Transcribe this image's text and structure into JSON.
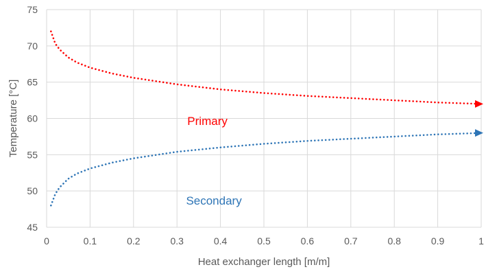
{
  "chart_data": {
    "type": "line",
    "title": "",
    "xlabel": "Heat exchanger length [m/m]",
    "ylabel": "Temperature [°C]",
    "xlim": [
      0,
      1
    ],
    "ylim": [
      45,
      75
    ],
    "xticks": [
      "0",
      "0.1",
      "0.2",
      "0.3",
      "0.4",
      "0.5",
      "0.6",
      "0.7",
      "0.8",
      "0.9",
      "1"
    ],
    "yticks": [
      "45",
      "50",
      "55",
      "60",
      "65",
      "70",
      "75"
    ],
    "grid": true,
    "series": [
      {
        "name": "Primary",
        "color": "#ff0000",
        "style": "dotted",
        "end_marker": "arrow",
        "x": [
          0.01,
          0.02,
          0.03,
          0.05,
          0.07,
          0.1,
          0.15,
          0.2,
          0.3,
          0.4,
          0.5,
          0.6,
          0.7,
          0.8,
          0.9,
          1.0
        ],
        "y": [
          72.0,
          70.3,
          69.5,
          68.4,
          67.7,
          67.0,
          66.2,
          65.6,
          64.7,
          64.0,
          63.5,
          63.1,
          62.8,
          62.5,
          62.2,
          62.0
        ]
      },
      {
        "name": "Secondary",
        "color": "#2e75b6",
        "style": "dotted",
        "end_marker": "arrow",
        "x": [
          0.01,
          0.02,
          0.03,
          0.05,
          0.07,
          0.1,
          0.15,
          0.2,
          0.3,
          0.4,
          0.5,
          0.6,
          0.7,
          0.8,
          0.9,
          1.0
        ],
        "y": [
          48.0,
          49.6,
          50.5,
          51.7,
          52.4,
          53.1,
          53.9,
          54.5,
          55.4,
          56.0,
          56.5,
          56.9,
          57.2,
          57.5,
          57.8,
          58.0
        ]
      }
    ],
    "annotations": [
      {
        "text": "Primary",
        "x": 0.37,
        "y": 59.1,
        "color": "#ff0000"
      },
      {
        "text": "Secondary",
        "x": 0.385,
        "y": 48.1,
        "color": "#2e75b6"
      }
    ]
  }
}
